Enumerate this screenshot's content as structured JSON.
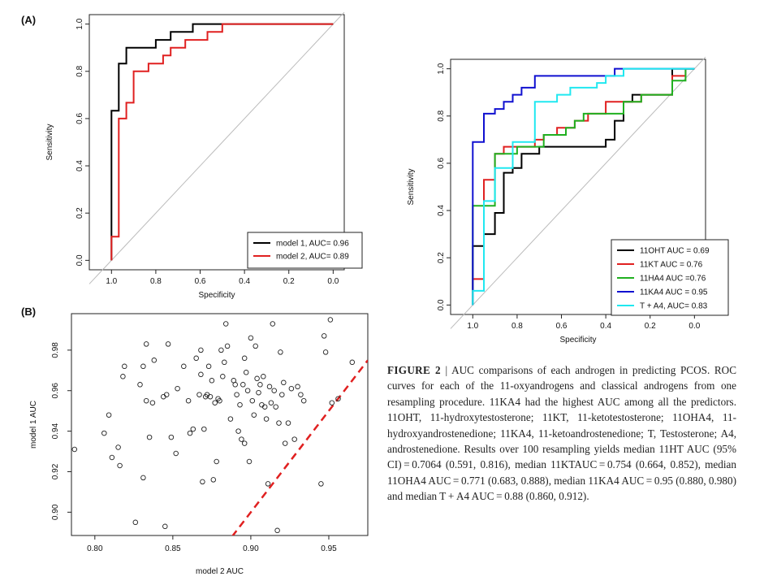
{
  "figure": {
    "panel_a_label": "(A)",
    "panel_b_label": "(B)",
    "caption_label": "FIGURE 2",
    "caption_sep": " | ",
    "caption_text": "AUC comparisons of each androgen in predicting PCOS. ROC curves for each of the 11-oxyandrogens and classical androgens from one resampling procedure. 11KA4 had the highest AUC among all the predictors. 11OHT, 11-hydroxytestosterone; 11KT, 11-ketotestosterone; 11OHA4, 11-hydroxyandrostenedione; 11KA4, 11-ketoandrostenedione; T, Testosterone; A4, androstenedione. Results over 100 resampling yields median 11HT AUC (95% CI) = 0.7064 (0.591, 0.816), median 11KTAUC = 0.754 (0.664, 0.852), median 11OHA4 AUC = 0.771 (0.683, 0.888), median 11KA4 AUC = 0.95 (0.880, 0.980) and median T + A4 AUC = 0.88 (0.860, 0.912)."
  },
  "chart_data": [
    {
      "id": "A",
      "type": "line",
      "xlabel": "Specificity",
      "ylabel": "Sensitivity",
      "xlim": [
        1.1,
        -0.05
      ],
      "ylim": [
        -0.04,
        1.04
      ],
      "xticks": [
        "1.0",
        "0.8",
        "0.6",
        "0.4",
        "0.2",
        "0.0"
      ],
      "xtick_values": [
        1.0,
        0.8,
        0.6,
        0.4,
        0.2,
        0.0
      ],
      "yticks": [
        "0.0",
        "0.2",
        "0.4",
        "0.6",
        "0.8",
        "1.0"
      ],
      "ytick_values": [
        0.0,
        0.2,
        0.4,
        0.6,
        0.8,
        1.0
      ],
      "diagonal": true,
      "legend_position": "bottom-right",
      "series": [
        {
          "name": "model 1,  AUC=  0.96",
          "color": "#000000",
          "points": [
            [
              1.0,
              0.0
            ],
            [
              1.0,
              0.633
            ],
            [
              0.967,
              0.633
            ],
            [
              0.967,
              0.833
            ],
            [
              0.933,
              0.833
            ],
            [
              0.933,
              0.9
            ],
            [
              0.867,
              0.9
            ],
            [
              0.8,
              0.9
            ],
            [
              0.8,
              0.933
            ],
            [
              0.733,
              0.933
            ],
            [
              0.733,
              0.967
            ],
            [
              0.633,
              0.967
            ],
            [
              0.633,
              1.0
            ],
            [
              0.0,
              1.0
            ]
          ]
        },
        {
          "name": "model 2, AUC= 0.89",
          "color": "#e02020",
          "points": [
            [
              1.0,
              0.0
            ],
            [
              1.0,
              0.1
            ],
            [
              0.967,
              0.1
            ],
            [
              0.967,
              0.6
            ],
            [
              0.933,
              0.6
            ],
            [
              0.933,
              0.667
            ],
            [
              0.9,
              0.667
            ],
            [
              0.9,
              0.8
            ],
            [
              0.833,
              0.8
            ],
            [
              0.833,
              0.833
            ],
            [
              0.767,
              0.833
            ],
            [
              0.767,
              0.867
            ],
            [
              0.733,
              0.867
            ],
            [
              0.733,
              0.9
            ],
            [
              0.667,
              0.9
            ],
            [
              0.667,
              0.933
            ],
            [
              0.567,
              0.933
            ],
            [
              0.567,
              0.967
            ],
            [
              0.5,
              0.967
            ],
            [
              0.5,
              1.0
            ],
            [
              0.0,
              1.0
            ]
          ]
        }
      ]
    },
    {
      "id": "C",
      "type": "line",
      "xlabel": "Specificity",
      "ylabel": "Sensitivity",
      "xlim": [
        1.1,
        -0.05
      ],
      "ylim": [
        -0.04,
        1.04
      ],
      "xticks": [
        "1.0",
        "0.8",
        "0.6",
        "0.4",
        "0.2",
        "0.0"
      ],
      "xtick_values": [
        1.0,
        0.8,
        0.6,
        0.4,
        0.2,
        0.0
      ],
      "yticks": [
        "0.0",
        "0.2",
        "0.4",
        "0.6",
        "0.8",
        "1.0"
      ],
      "ytick_values": [
        0.0,
        0.2,
        0.4,
        0.6,
        0.8,
        1.0
      ],
      "diagonal": true,
      "legend_position": "bottom-right",
      "series": [
        {
          "name": "11OHT AUC = 0.69",
          "color": "#000000",
          "points": [
            [
              1.0,
              0.0
            ],
            [
              1.0,
              0.25
            ],
            [
              0.95,
              0.25
            ],
            [
              0.95,
              0.3
            ],
            [
              0.9,
              0.3
            ],
            [
              0.9,
              0.39
            ],
            [
              0.86,
              0.39
            ],
            [
              0.86,
              0.56
            ],
            [
              0.82,
              0.56
            ],
            [
              0.82,
              0.58
            ],
            [
              0.78,
              0.58
            ],
            [
              0.78,
              0.64
            ],
            [
              0.7,
              0.64
            ],
            [
              0.7,
              0.67
            ],
            [
              0.4,
              0.67
            ],
            [
              0.4,
              0.7
            ],
            [
              0.36,
              0.7
            ],
            [
              0.36,
              0.78
            ],
            [
              0.32,
              0.78
            ],
            [
              0.32,
              0.86
            ],
            [
              0.28,
              0.86
            ],
            [
              0.28,
              0.89
            ],
            [
              0.1,
              0.89
            ],
            [
              0.1,
              0.95
            ],
            [
              0.1,
              1.0
            ],
            [
              0.0,
              1.0
            ]
          ]
        },
        {
          "name": "11KT AUC = 0.76",
          "color": "#e02020",
          "points": [
            [
              1.0,
              0.0
            ],
            [
              1.0,
              0.11
            ],
            [
              0.95,
              0.11
            ],
            [
              0.95,
              0.53
            ],
            [
              0.9,
              0.53
            ],
            [
              0.9,
              0.64
            ],
            [
              0.86,
              0.64
            ],
            [
              0.86,
              0.67
            ],
            [
              0.72,
              0.67
            ],
            [
              0.72,
              0.7
            ],
            [
              0.68,
              0.7
            ],
            [
              0.68,
              0.72
            ],
            [
              0.62,
              0.72
            ],
            [
              0.62,
              0.75
            ],
            [
              0.54,
              0.75
            ],
            [
              0.54,
              0.78
            ],
            [
              0.48,
              0.78
            ],
            [
              0.48,
              0.81
            ],
            [
              0.4,
              0.81
            ],
            [
              0.4,
              0.86
            ],
            [
              0.24,
              0.86
            ],
            [
              0.24,
              0.89
            ],
            [
              0.1,
              0.89
            ],
            [
              0.1,
              0.97
            ],
            [
              0.04,
              0.97
            ],
            [
              0.04,
              1.0
            ],
            [
              0.0,
              1.0
            ]
          ]
        },
        {
          "name": "11HA4 AUC =0.76",
          "color": "#20b020",
          "points": [
            [
              1.0,
              0.0
            ],
            [
              1.0,
              0.42
            ],
            [
              0.9,
              0.42
            ],
            [
              0.9,
              0.64
            ],
            [
              0.8,
              0.64
            ],
            [
              0.8,
              0.67
            ],
            [
              0.68,
              0.67
            ],
            [
              0.68,
              0.72
            ],
            [
              0.58,
              0.72
            ],
            [
              0.58,
              0.75
            ],
            [
              0.54,
              0.75
            ],
            [
              0.54,
              0.78
            ],
            [
              0.5,
              0.78
            ],
            [
              0.5,
              0.81
            ],
            [
              0.32,
              0.81
            ],
            [
              0.32,
              0.86
            ],
            [
              0.24,
              0.86
            ],
            [
              0.24,
              0.89
            ],
            [
              0.1,
              0.89
            ],
            [
              0.1,
              0.95
            ],
            [
              0.04,
              0.95
            ],
            [
              0.04,
              1.0
            ],
            [
              0.0,
              1.0
            ]
          ]
        },
        {
          "name": "11KA4 AUC = 0.95",
          "color": "#1010d0",
          "points": [
            [
              1.0,
              0.0
            ],
            [
              1.0,
              0.69
            ],
            [
              0.95,
              0.69
            ],
            [
              0.95,
              0.81
            ],
            [
              0.9,
              0.81
            ],
            [
              0.9,
              0.83
            ],
            [
              0.86,
              0.83
            ],
            [
              0.86,
              0.86
            ],
            [
              0.82,
              0.86
            ],
            [
              0.82,
              0.89
            ],
            [
              0.78,
              0.89
            ],
            [
              0.78,
              0.92
            ],
            [
              0.72,
              0.92
            ],
            [
              0.72,
              0.97
            ],
            [
              0.36,
              0.97
            ],
            [
              0.36,
              1.0
            ],
            [
              0.0,
              1.0
            ]
          ]
        },
        {
          "name": "T + A4, AUC= 0.83",
          "color": "#20e8f0",
          "points": [
            [
              1.0,
              0.0
            ],
            [
              1.0,
              0.06
            ],
            [
              0.95,
              0.06
            ],
            [
              0.95,
              0.44
            ],
            [
              0.9,
              0.44
            ],
            [
              0.9,
              0.58
            ],
            [
              0.82,
              0.58
            ],
            [
              0.82,
              0.69
            ],
            [
              0.72,
              0.69
            ],
            [
              0.72,
              0.86
            ],
            [
              0.62,
              0.86
            ],
            [
              0.62,
              0.89
            ],
            [
              0.56,
              0.89
            ],
            [
              0.56,
              0.92
            ],
            [
              0.44,
              0.92
            ],
            [
              0.44,
              0.94
            ],
            [
              0.4,
              0.94
            ],
            [
              0.4,
              0.97
            ],
            [
              0.32,
              0.97
            ],
            [
              0.32,
              1.0
            ],
            [
              0.0,
              1.0
            ]
          ]
        }
      ]
    },
    {
      "id": "B",
      "type": "scatter",
      "xlabel": "model 2 AUC",
      "ylabel": "model 1 AUC",
      "xlim": [
        0.785,
        0.975
      ],
      "ylim": [
        0.8885,
        0.998
      ],
      "xticks": [
        "0.80",
        "0.85",
        "0.90",
        "0.95"
      ],
      "xtick_values": [
        0.8,
        0.85,
        0.9,
        0.95
      ],
      "yticks": [
        "0.90",
        "0.92",
        "0.94",
        "0.96",
        "0.98"
      ],
      "ytick_values": [
        0.9,
        0.92,
        0.94,
        0.96,
        0.98
      ],
      "reference_line": {
        "from": [
          0.888,
          0.888
        ],
        "to": [
          0.975,
          0.975
        ],
        "color": "#e02020",
        "dashed": true
      },
      "points": [
        [
          0.787,
          0.931
        ],
        [
          0.806,
          0.939
        ],
        [
          0.809,
          0.948
        ],
        [
          0.811,
          0.927
        ],
        [
          0.815,
          0.932
        ],
        [
          0.816,
          0.923
        ],
        [
          0.818,
          0.967
        ],
        [
          0.819,
          0.972
        ],
        [
          0.826,
          0.895
        ],
        [
          0.829,
          0.963
        ],
        [
          0.831,
          0.917
        ],
        [
          0.831,
          0.972
        ],
        [
          0.833,
          0.983
        ],
        [
          0.833,
          0.955
        ],
        [
          0.835,
          0.937
        ],
        [
          0.837,
          0.954
        ],
        [
          0.838,
          0.975
        ],
        [
          0.844,
          0.957
        ],
        [
          0.845,
          0.893
        ],
        [
          0.846,
          0.958
        ],
        [
          0.847,
          0.983
        ],
        [
          0.849,
          0.937
        ],
        [
          0.852,
          0.929
        ],
        [
          0.853,
          0.961
        ],
        [
          0.857,
          0.972
        ],
        [
          0.86,
          0.955
        ],
        [
          0.861,
          0.939
        ],
        [
          0.863,
          0.941
        ],
        [
          0.865,
          0.976
        ],
        [
          0.867,
          0.958
        ],
        [
          0.868,
          0.98
        ],
        [
          0.868,
          0.968
        ],
        [
          0.869,
          0.915
        ],
        [
          0.87,
          0.941
        ],
        [
          0.871,
          0.957
        ],
        [
          0.872,
          0.958
        ],
        [
          0.873,
          0.972
        ],
        [
          0.874,
          0.957
        ],
        [
          0.875,
          0.965
        ],
        [
          0.876,
          0.916
        ],
        [
          0.877,
          0.954
        ],
        [
          0.878,
          0.925
        ],
        [
          0.879,
          0.956
        ],
        [
          0.88,
          0.955
        ],
        [
          0.881,
          0.98
        ],
        [
          0.882,
          0.967
        ],
        [
          0.883,
          0.974
        ],
        [
          0.884,
          0.993
        ],
        [
          0.885,
          0.982
        ],
        [
          0.887,
          0.946
        ],
        [
          0.889,
          0.965
        ],
        [
          0.89,
          0.963
        ],
        [
          0.891,
          0.958
        ],
        [
          0.892,
          0.94
        ],
        [
          0.893,
          0.953
        ],
        [
          0.894,
          0.936
        ],
        [
          0.895,
          0.963
        ],
        [
          0.896,
          0.976
        ],
        [
          0.896,
          0.934
        ],
        [
          0.897,
          0.969
        ],
        [
          0.898,
          0.96
        ],
        [
          0.899,
          0.925
        ],
        [
          0.9,
          0.986
        ],
        [
          0.901,
          0.955
        ],
        [
          0.902,
          0.948
        ],
        [
          0.903,
          0.982
        ],
        [
          0.904,
          0.966
        ],
        [
          0.905,
          0.959
        ],
        [
          0.906,
          0.963
        ],
        [
          0.907,
          0.953
        ],
        [
          0.908,
          0.967
        ],
        [
          0.909,
          0.952
        ],
        [
          0.91,
          0.946
        ],
        [
          0.911,
          0.914
        ],
        [
          0.912,
          0.962
        ],
        [
          0.913,
          0.954
        ],
        [
          0.914,
          0.993
        ],
        [
          0.915,
          0.96
        ],
        [
          0.916,
          0.952
        ],
        [
          0.917,
          0.891
        ],
        [
          0.918,
          0.944
        ],
        [
          0.919,
          0.979
        ],
        [
          0.92,
          0.958
        ],
        [
          0.921,
          0.964
        ],
        [
          0.922,
          0.934
        ],
        [
          0.924,
          0.944
        ],
        [
          0.926,
          0.961
        ],
        [
          0.928,
          0.936
        ],
        [
          0.93,
          0.962
        ],
        [
          0.932,
          0.958
        ],
        [
          0.934,
          0.955
        ],
        [
          0.945,
          0.914
        ],
        [
          0.947,
          0.987
        ],
        [
          0.948,
          0.979
        ],
        [
          0.951,
          0.995
        ],
        [
          0.952,
          0.954
        ],
        [
          0.956,
          0.956
        ],
        [
          0.965,
          0.974
        ]
      ]
    }
  ]
}
